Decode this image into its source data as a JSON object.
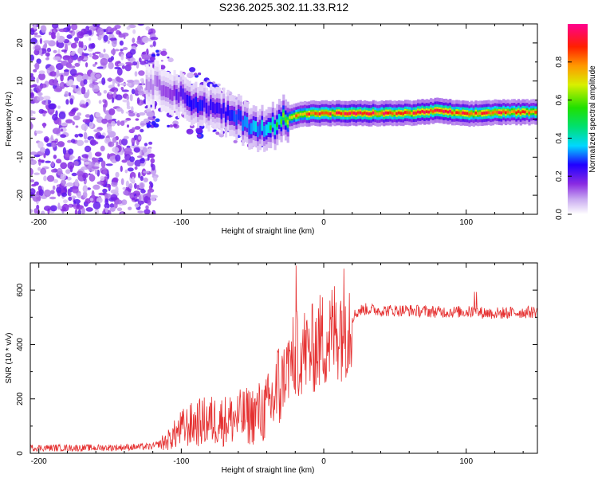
{
  "title": "S236.2025.302.11.33.R12",
  "colors": {
    "snr_line": "#e53030",
    "frame": "#000000"
  },
  "chart_data": [
    {
      "type": "heatmap",
      "title": "S236.2025.302.11.33.R12",
      "xlabel": "Height of straight line (km)",
      "ylabel": "Frequency (Hz)",
      "xlim": [
        -206,
        150
      ],
      "ylim": [
        -25,
        25
      ],
      "xticks": [
        -200,
        -100,
        0,
        100
      ],
      "xtick_labels": [
        "-200",
        "-100",
        "0",
        "100"
      ],
      "yticks": [
        -20,
        -10,
        0,
        10,
        20
      ],
      "ytick_labels": [
        "-20",
        "-10",
        "0",
        "10",
        "20"
      ],
      "colorbar": {
        "label": "Normalized spectral amplitude",
        "range": [
          0,
          1
        ],
        "ticks": [
          0.0,
          0.2,
          0.4,
          0.6,
          0.8
        ],
        "tick_labels": [
          "0.0",
          "0.2",
          "0.4",
          "0.6",
          "0.8"
        ]
      },
      "ridge": {
        "x": [
          -120,
          -110,
          -100,
          -90,
          -80,
          -70,
          -60,
          -50,
          -40,
          -30,
          -20,
          -10,
          0,
          20,
          40,
          60,
          80,
          100,
          120,
          150
        ],
        "frequency": [
          9,
          8,
          6,
          4,
          3,
          1.5,
          0,
          -2,
          -3,
          0,
          1,
          1.5,
          1.5,
          1.5,
          1.5,
          1.6,
          2.2,
          1.3,
          1.8,
          1.8
        ],
        "amplitude": [
          0.15,
          0.2,
          0.3,
          0.35,
          0.3,
          0.35,
          0.4,
          0.45,
          0.5,
          0.6,
          0.8,
          0.85,
          0.85,
          0.9,
          0.88,
          0.88,
          0.95,
          0.85,
          0.88,
          0.85
        ]
      }
    },
    {
      "type": "line",
      "xlabel": "Height of straight line (km)",
      "ylabel": "SNR (10 * v/v)",
      "xlim": [
        -206,
        150
      ],
      "ylim": [
        0,
        700
      ],
      "xticks": [
        -200,
        -100,
        0,
        100
      ],
      "xtick_labels": [
        "-200",
        "-100",
        "0",
        "100"
      ],
      "yticks": [
        0,
        200,
        400,
        600
      ],
      "ytick_labels": [
        "0",
        "200",
        "400",
        "600"
      ],
      "series": [
        {
          "name": "SNR",
          "x": [
            -206,
            -180,
            -160,
            -140,
            -120,
            -110,
            -100,
            -90,
            -80,
            -70,
            -60,
            -50,
            -40,
            -35,
            -30,
            -25,
            -20,
            -15,
            -10,
            -5,
            0,
            5,
            10,
            15,
            20,
            25,
            30,
            40,
            60,
            80,
            100,
            120,
            150
          ],
          "y": [
            20,
            20,
            20,
            22,
            25,
            45,
            90,
            110,
            120,
            120,
            130,
            140,
            160,
            200,
            260,
            320,
            360,
            380,
            370,
            400,
            420,
            430,
            470,
            490,
            500,
            525,
            530,
            525,
            525,
            520,
            520,
            515,
            520
          ]
        }
      ]
    }
  ]
}
